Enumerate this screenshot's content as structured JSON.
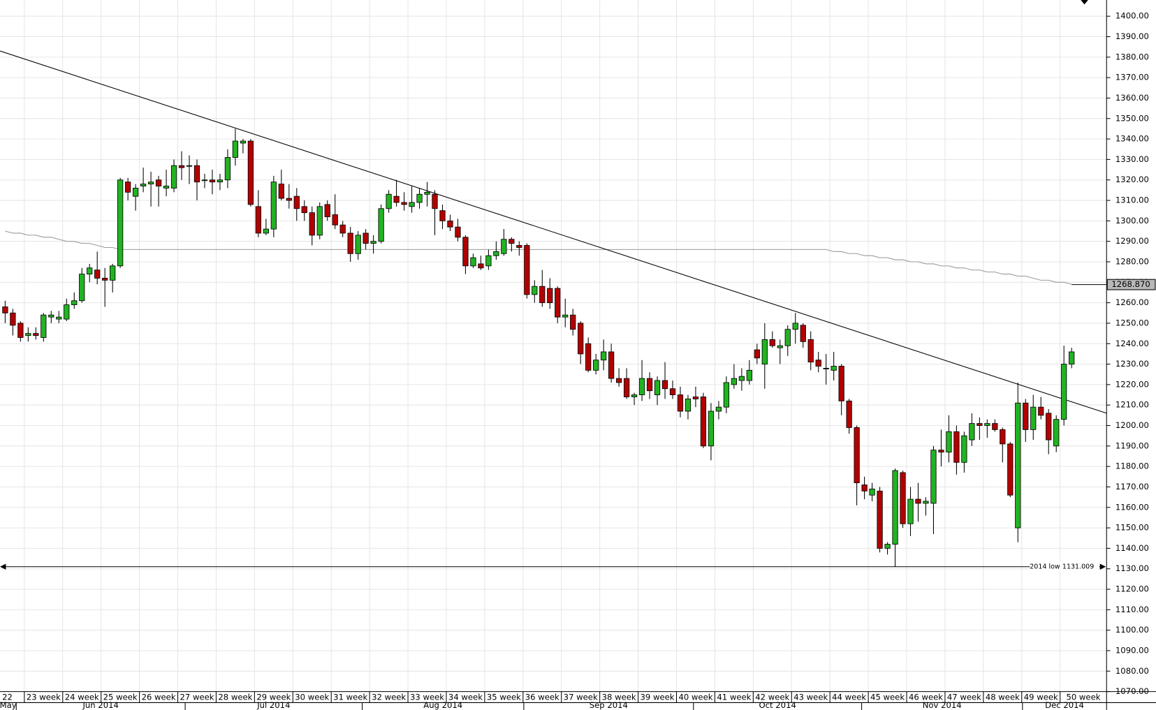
{
  "chart_data": {
    "type": "candlestick",
    "up_color": "#22b322",
    "down_color": "#b30000",
    "grid": true,
    "open": [
      1258,
      1255,
      1250,
      1244,
      1245,
      1243,
      1253,
      1252,
      1252,
      1259,
      1261,
      1274,
      1276,
      1272,
      1271,
      1278,
      1319,
      1312,
      1317,
      1318,
      1320,
      1316,
      1316,
      1327,
      1327,
      1327,
      1320,
      1320,
      1319,
      1320,
      1331,
      1338,
      1339,
      1307,
      1294,
      1296,
      1318,
      1311,
      1312,
      1307,
      1304,
      1293,
      1308,
      1303,
      1298,
      1294,
      1284,
      1294,
      1289,
      1290,
      1306,
      1312,
      1309,
      1307,
      1309,
      1313,
      1313,
      1305,
      1300,
      1297,
      1292,
      1278,
      1279,
      1278,
      1283,
      1284,
      1291,
      1288,
      1288,
      1264,
      1268,
      1267,
      1267,
      1253,
      1254,
      1250,
      1240,
      1227,
      1232,
      1236,
      1223,
      1223,
      1214,
      1215,
      1223,
      1215,
      1222,
      1218,
      1215,
      1207,
      1214,
      1214,
      1190,
      1207,
      1209,
      1220,
      1222,
      1222,
      1237,
      1230,
      1242,
      1238,
      1239,
      1247,
      1249,
      1242,
      1232,
      1228,
      1227,
      1229,
      1212,
      1199,
      1171,
      1166,
      1168,
      1140,
      1142,
      1177,
      1152,
      1164,
      1162,
      1162,
      1188,
      1187,
      1197,
      1182,
      1193,
      1201,
      1200,
      1201,
      1198,
      1191,
      1150,
      1211,
      1198,
      1209,
      1206,
      1190,
      1203,
      1230
    ],
    "high": [
      1261,
      1257,
      1251,
      1248,
      1248,
      1255,
      1256,
      1256,
      1262,
      1265,
      1277,
      1279,
      1285,
      1277,
      1279,
      1321,
      1321,
      1318,
      1326,
      1324,
      1322,
      1325,
      1330,
      1334,
      1332,
      1330,
      1323,
      1325,
      1323,
      1335,
      1345,
      1340,
      1340,
      1315,
      1301,
      1322,
      1325,
      1318,
      1316,
      1310,
      1307,
      1309,
      1310,
      1313,
      1300,
      1297,
      1295,
      1296,
      1293,
      1308,
      1315,
      1320,
      1314,
      1317,
      1316,
      1319,
      1315,
      1308,
      1303,
      1301,
      1293,
      1284,
      1283,
      1286,
      1290,
      1296,
      1292,
      1290,
      1289,
      1271,
      1276,
      1272,
      1268,
      1262,
      1257,
      1251,
      1243,
      1235,
      1242,
      1240,
      1228,
      1228,
      1216,
      1232,
      1226,
      1224,
      1231,
      1222,
      1219,
      1215,
      1219,
      1216,
      1211,
      1212,
      1224,
      1230,
      1228,
      1232,
      1240,
      1250,
      1246,
      1242,
      1249,
      1255,
      1250,
      1246,
      1236,
      1235,
      1236,
      1230,
      1213,
      1200,
      1175,
      1172,
      1170,
      1143,
      1179,
      1178,
      1170,
      1172,
      1165,
      1190,
      1198,
      1205,
      1200,
      1197,
      1206,
      1204,
      1203,
      1203,
      1199,
      1192,
      1221,
      1213,
      1215,
      1214,
      1208,
      1205,
      1239,
      1238
    ],
    "low": [
      1250,
      1244,
      1241,
      1241,
      1242,
      1241,
      1250,
      1250,
      1251,
      1257,
      1260,
      1270,
      1269,
      1258,
      1265,
      1277,
      1310,
      1305,
      1314,
      1307,
      1307,
      1312,
      1314,
      1320,
      1318,
      1310,
      1316,
      1313,
      1315,
      1316,
      1327,
      1333,
      1307,
      1292,
      1293,
      1292,
      1310,
      1306,
      1300,
      1300,
      1288,
      1291,
      1300,
      1296,
      1292,
      1280,
      1281,
      1286,
      1284,
      1289,
      1304,
      1307,
      1305,
      1304,
      1306,
      1307,
      1293,
      1296,
      1295,
      1290,
      1274,
      1277,
      1276,
      1276,
      1281,
      1283,
      1285,
      1283,
      1262,
      1260,
      1258,
      1257,
      1250,
      1248,
      1244,
      1230,
      1226,
      1225,
      1227,
      1221,
      1219,
      1213,
      1210,
      1212,
      1213,
      1210,
      1213,
      1213,
      1204,
      1203,
      1209,
      1189,
      1183,
      1203,
      1206,
      1218,
      1217,
      1220,
      1230,
      1218,
      1238,
      1230,
      1234,
      1240,
      1238,
      1227,
      1226,
      1220,
      1222,
      1205,
      1196,
      1161,
      1164,
      1163,
      1138,
      1137,
      1131,
      1150,
      1146,
      1153,
      1156,
      1147,
      1180,
      1182,
      1176,
      1177,
      1190,
      1193,
      1194,
      1197,
      1182,
      1165,
      1143,
      1192,
      1193,
      1203,
      1186,
      1187,
      1200,
      1228
    ],
    "close": [
      1255,
      1249,
      1243,
      1245,
      1244,
      1254,
      1254,
      1253,
      1259,
      1261,
      1274,
      1277,
      1272,
      1271,
      1278,
      1320,
      1314,
      1316,
      1318,
      1319,
      1317,
      1317,
      1327,
      1326,
      1327,
      1319,
      1320,
      1319,
      1320,
      1331,
      1339,
      1339,
      1308,
      1294,
      1296,
      1319,
      1311,
      1310,
      1306,
      1304,
      1293,
      1307,
      1302,
      1298,
      1294,
      1284,
      1293,
      1289,
      1290,
      1306,
      1313,
      1309,
      1308,
      1309,
      1313,
      1314,
      1306,
      1300,
      1297,
      1292,
      1278,
      1282,
      1277,
      1283,
      1285,
      1291,
      1289,
      1287,
      1264,
      1268,
      1260,
      1260,
      1253,
      1254,
      1247,
      1235,
      1227,
      1232,
      1236,
      1223,
      1221,
      1214,
      1215,
      1223,
      1217,
      1222,
      1218,
      1215,
      1207,
      1213,
      1213,
      1190,
      1207,
      1209,
      1221,
      1223,
      1224,
      1227,
      1233,
      1242,
      1239,
      1239,
      1247,
      1250,
      1241,
      1231,
      1229,
      1228,
      1229,
      1212,
      1199,
      1172,
      1168,
      1169,
      1140,
      1142,
      1178,
      1152,
      1164,
      1162,
      1163,
      1188,
      1187,
      1197,
      1182,
      1195,
      1201,
      1200,
      1201,
      1198,
      1191,
      1166,
      1211,
      1198,
      1209,
      1205,
      1193,
      1203,
      1230,
      1236
    ],
    "moving_average": {
      "color": "#999999",
      "values": [
        1295,
        1294,
        1294,
        1293,
        1293,
        1292,
        1292,
        1291,
        1290,
        1290,
        1289,
        1289,
        1288,
        1287,
        1287,
        1286,
        1286,
        1286,
        1286,
        1286,
        1286,
        1286,
        1286,
        1286,
        1286,
        1286,
        1286,
        1286,
        1286,
        1286,
        1286,
        1286,
        1286,
        1286,
        1286,
        1286,
        1286,
        1286,
        1286,
        1286,
        1286,
        1286,
        1286,
        1286,
        1286,
        1286,
        1286,
        1286,
        1286,
        1286,
        1286,
        1286,
        1286,
        1286,
        1286,
        1286,
        1286,
        1286,
        1286,
        1286,
        1286,
        1286,
        1286,
        1286,
        1286,
        1286,
        1286,
        1286,
        1286,
        1286,
        1286,
        1286,
        1286,
        1286,
        1286,
        1286,
        1286,
        1286,
        1286,
        1286,
        1286,
        1286,
        1286,
        1286,
        1286,
        1286,
        1286,
        1286,
        1286,
        1286,
        1286,
        1286,
        1286,
        1286,
        1286,
        1286,
        1286,
        1286,
        1286,
        1286,
        1286,
        1286,
        1286,
        1286,
        1286,
        1286,
        1286,
        1286,
        1285,
        1285,
        1284,
        1284,
        1283,
        1283,
        1282,
        1282,
        1281,
        1281,
        1280,
        1280,
        1279,
        1279,
        1278,
        1278,
        1277,
        1277,
        1276,
        1276,
        1275,
        1275,
        1274,
        1274,
        1273,
        1273,
        1272,
        1271,
        1271,
        1270,
        1270,
        1269
      ],
      "last": {
        "value": 1268.87,
        "label": "1268.870"
      }
    },
    "trendline": {
      "start": 1383,
      "end": 1206
    },
    "low_line": {
      "label": "2014 low",
      "value": 1131.009
    },
    "weeks": [
      "22",
      "23 week",
      "24 week",
      "25 week",
      "26 week",
      "27 week",
      "28 week",
      "29 week",
      "30 week",
      "31 week",
      "32 week",
      "33 week",
      "34 week",
      "35 week",
      "36 week",
      "37 week",
      "38 week",
      "39 week",
      "40 week",
      "41 week",
      "42 week",
      "43 week",
      "44 week",
      "45 week",
      "46 week",
      "47 week",
      "48 week",
      "49 week",
      "50 week"
    ],
    "months": [
      "May",
      "Jun 2014",
      "Jul 2014",
      "Aug 2014",
      "Sep 2014",
      "Oct 2014",
      "Nov 2014",
      "Dec 2014"
    ],
    "ylim": [
      1070,
      1400
    ],
    "yticks": [
      {
        "value": 1070,
        "label": "1070.00"
      },
      {
        "value": 1080,
        "label": "1080.00"
      },
      {
        "value": 1090,
        "label": "1090.00"
      },
      {
        "value": 1100,
        "label": "1100.00"
      },
      {
        "value": 1110,
        "label": "1110.00"
      },
      {
        "value": 1120,
        "label": "1120.00"
      },
      {
        "value": 1130,
        "label": "1130.00"
      },
      {
        "value": 1140,
        "label": "1140.00"
      },
      {
        "value": 1150,
        "label": "1150.00"
      },
      {
        "value": 1160,
        "label": "1160.00"
      },
      {
        "value": 1170,
        "label": "1170.00"
      },
      {
        "value": 1180,
        "label": "1180.00"
      },
      {
        "value": 1190,
        "label": "1190.00"
      },
      {
        "value": 1200,
        "label": "1200.00"
      },
      {
        "value": 1210,
        "label": "1210.00"
      },
      {
        "value": 1220,
        "label": "1220.00"
      },
      {
        "value": 1230,
        "label": "1230.00"
      },
      {
        "value": 1240,
        "label": "1240.00"
      },
      {
        "value": 1250,
        "label": "1250.00"
      },
      {
        "value": 1260,
        "label": "1260.00"
      },
      {
        "value": 1270,
        "label": "1270.00"
      },
      {
        "value": 1280,
        "label": "1280.00"
      },
      {
        "value": 1290,
        "label": "1290.00"
      },
      {
        "value": 1300,
        "label": "1300.00"
      },
      {
        "value": 1310,
        "label": "1310.00"
      },
      {
        "value": 1320,
        "label": "1320.00"
      },
      {
        "value": 1330,
        "label": "1330.00"
      },
      {
        "value": 1340,
        "label": "1340.00"
      },
      {
        "value": 1350,
        "label": "1350.00"
      },
      {
        "value": 1360,
        "label": "1360.00"
      },
      {
        "value": 1370,
        "label": "1370.00"
      },
      {
        "value": 1380,
        "label": "1380.00"
      },
      {
        "value": 1390,
        "label": "1390.00"
      },
      {
        "value": 1400,
        "label": "1400.00"
      }
    ]
  }
}
